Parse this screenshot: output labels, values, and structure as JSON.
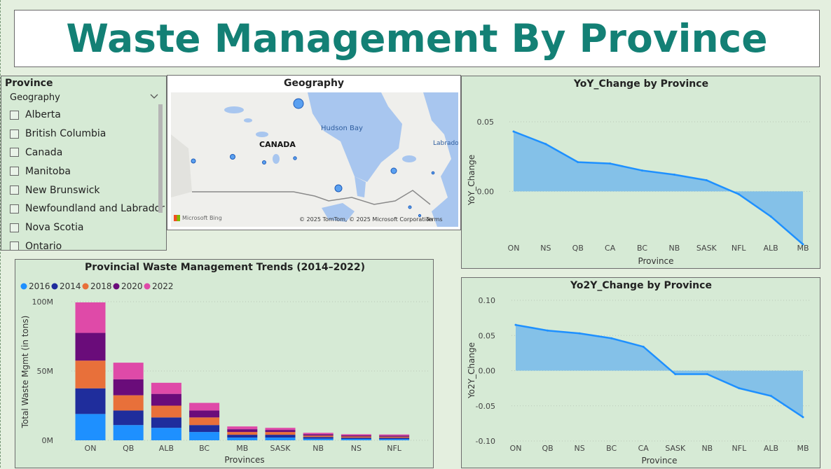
{
  "header": {
    "title": "Waste Management By Province"
  },
  "slicer": {
    "title": "Province",
    "field": "Geography",
    "chevron_icon": "chevron-down-icon",
    "items": [
      "Alberta",
      "British Columbia",
      "Canada",
      "Manitoba",
      "New Brunswick",
      "Newfoundland and Labrador",
      "Nova Scotia",
      "Ontario"
    ]
  },
  "map": {
    "title": "Geography",
    "country_label": "CANADA",
    "water_label": "Hudson Bay",
    "region_label": "Labrador",
    "attribution": "© 2025 TomTom, © 2025 Microsoft Corporation",
    "terms": "Terms",
    "provider": "Microsoft Bing"
  },
  "yoy_chart": {
    "title": "YoY_Change by Province",
    "xlabel": "Province",
    "ylabel": "YoY_Change"
  },
  "yo2y_chart": {
    "title": "Yo2Y_Change by Province",
    "xlabel": "Province",
    "ylabel": "Yo2Y_Change"
  },
  "bar_chart": {
    "title": "Provincial Waste Management Trends (2014–2022)",
    "xlabel": "Provinces",
    "ylabel": "Total Waste Mgmt (in tons)"
  },
  "chart_data": [
    {
      "type": "area",
      "title": "YoY_Change by Province",
      "xlabel": "Province",
      "ylabel": "YoY_Change",
      "categories": [
        "ON",
        "NS",
        "QB",
        "CA",
        "BC",
        "NB",
        "SASK",
        "NFL",
        "ALB",
        "MB"
      ],
      "values": [
        0.043,
        0.034,
        0.021,
        0.02,
        0.015,
        0.012,
        0.008,
        -0.002,
        -0.018,
        -0.038
      ],
      "yticks": [
        "0.05",
        "0.00"
      ],
      "ylim": [
        -0.04,
        0.055
      ],
      "color": "#1e90ff",
      "fill": "#84c1e8",
      "grid": true
    },
    {
      "type": "area",
      "title": "Yo2Y_Change by Province",
      "xlabel": "Province",
      "ylabel": "Yo2Y_Change",
      "categories": [
        "ON",
        "QB",
        "NS",
        "BC",
        "CA",
        "SASK",
        "NB",
        "NFL",
        "ALB",
        "MB"
      ],
      "values": [
        0.065,
        0.057,
        0.053,
        0.046,
        0.034,
        -0.005,
        -0.005,
        -0.025,
        -0.036,
        -0.066
      ],
      "yticks": [
        "0.10",
        "0.05",
        "0.00",
        "-0.05",
        "-0.10"
      ],
      "ylim": [
        -0.1,
        0.1
      ],
      "color": "#1e90ff",
      "fill": "#84c1e8",
      "grid": true
    },
    {
      "type": "bar",
      "stacked": true,
      "title": "Provincial Waste Management Trends (2014–2022)",
      "xlabel": "Provinces",
      "ylabel": "Total Waste Mgmt (in tons)",
      "categories": [
        "ON",
        "QB",
        "ALB",
        "BC",
        "MB",
        "SASK",
        "NB",
        "NS",
        "NFL"
      ],
      "ylim": [
        0,
        100000000
      ],
      "yticks": [
        "0M",
        "50M",
        "100M"
      ],
      "legend_position": "top-left",
      "grid": true,
      "series": [
        {
          "name": "2016",
          "color": "#1e90ff",
          "values": [
            19000000,
            11000000,
            9000000,
            6000000,
            2000000,
            2000000,
            1200000,
            1000000,
            900000
          ]
        },
        {
          "name": "2014",
          "color": "#1f2d9c",
          "values": [
            18500000,
            10500000,
            7500000,
            5000000,
            2000000,
            2000000,
            1200000,
            900000,
            900000
          ]
        },
        {
          "name": "2018",
          "color": "#e8703a",
          "values": [
            20000000,
            11000000,
            8500000,
            5500000,
            2000000,
            2000000,
            1000000,
            900000,
            800000
          ]
        },
        {
          "name": "2020",
          "color": "#6a0c7a",
          "values": [
            20000000,
            11500000,
            8500000,
            5000000,
            2000000,
            1500000,
            1000000,
            800000,
            800000
          ]
        },
        {
          "name": "2022",
          "color": "#df4aa8",
          "values": [
            22000000,
            12000000,
            8000000,
            5500000,
            2000000,
            1500000,
            1000000,
            800000,
            800000
          ]
        }
      ]
    }
  ]
}
